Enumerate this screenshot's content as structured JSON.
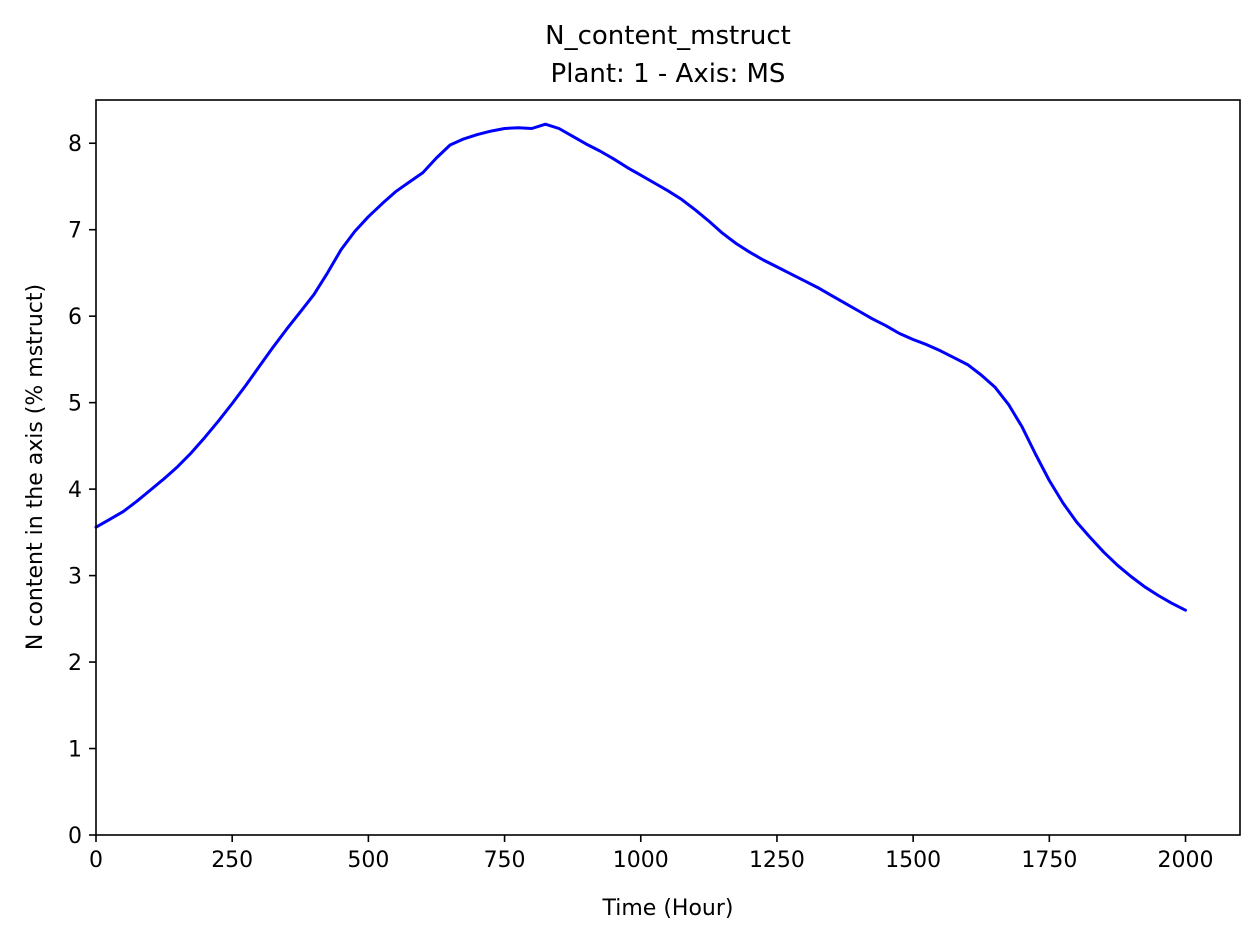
{
  "chart_data": {
    "type": "line",
    "title": "N_content_mstruct",
    "subtitle": "Plant: 1 - Axis: MS",
    "xlabel": "Time (Hour)",
    "ylabel": "N content in the axis (% mstruct)",
    "xlim": [
      0,
      2100
    ],
    "ylim": [
      0,
      8.5
    ],
    "xticks": [
      0,
      250,
      500,
      750,
      1000,
      1250,
      1500,
      1750,
      2000
    ],
    "yticks": [
      0,
      1,
      2,
      3,
      4,
      5,
      6,
      7,
      8
    ],
    "grid": false,
    "series": [
      {
        "color": "#0000ff",
        "x": [
          0,
          25,
          50,
          75,
          100,
          125,
          150,
          175,
          200,
          225,
          250,
          275,
          300,
          325,
          350,
          375,
          400,
          425,
          450,
          475,
          500,
          525,
          550,
          575,
          600,
          625,
          650,
          675,
          700,
          725,
          750,
          775,
          800,
          825,
          850,
          875,
          900,
          925,
          950,
          975,
          1000,
          1025,
          1050,
          1075,
          1100,
          1125,
          1150,
          1175,
          1200,
          1225,
          1250,
          1275,
          1300,
          1325,
          1350,
          1375,
          1400,
          1425,
          1450,
          1475,
          1500,
          1525,
          1550,
          1575,
          1600,
          1625,
          1650,
          1675,
          1700,
          1725,
          1750,
          1775,
          1800,
          1825,
          1850,
          1875,
          1900,
          1925,
          1950,
          1975,
          2000
        ],
        "y": [
          3.56,
          3.65,
          3.74,
          3.86,
          3.99,
          4.12,
          4.26,
          4.42,
          4.6,
          4.79,
          4.99,
          5.2,
          5.42,
          5.64,
          5.85,
          6.05,
          6.25,
          6.5,
          6.77,
          6.98,
          7.15,
          7.3,
          7.44,
          7.55,
          7.66,
          7.83,
          7.98,
          8.05,
          8.1,
          8.14,
          8.17,
          8.18,
          8.17,
          8.22,
          8.17,
          8.08,
          7.99,
          7.91,
          7.82,
          7.72,
          7.63,
          7.54,
          7.45,
          7.35,
          7.23,
          7.1,
          6.96,
          6.84,
          6.74,
          6.65,
          6.57,
          6.49,
          6.41,
          6.33,
          6.24,
          6.15,
          6.06,
          5.97,
          5.89,
          5.8,
          5.73,
          5.67,
          5.6,
          5.52,
          5.44,
          5.32,
          5.18,
          4.98,
          4.72,
          4.4,
          4.1,
          3.84,
          3.62,
          3.44,
          3.27,
          3.12,
          2.99,
          2.87,
          2.77,
          2.68,
          2.6
        ]
      }
    ]
  }
}
